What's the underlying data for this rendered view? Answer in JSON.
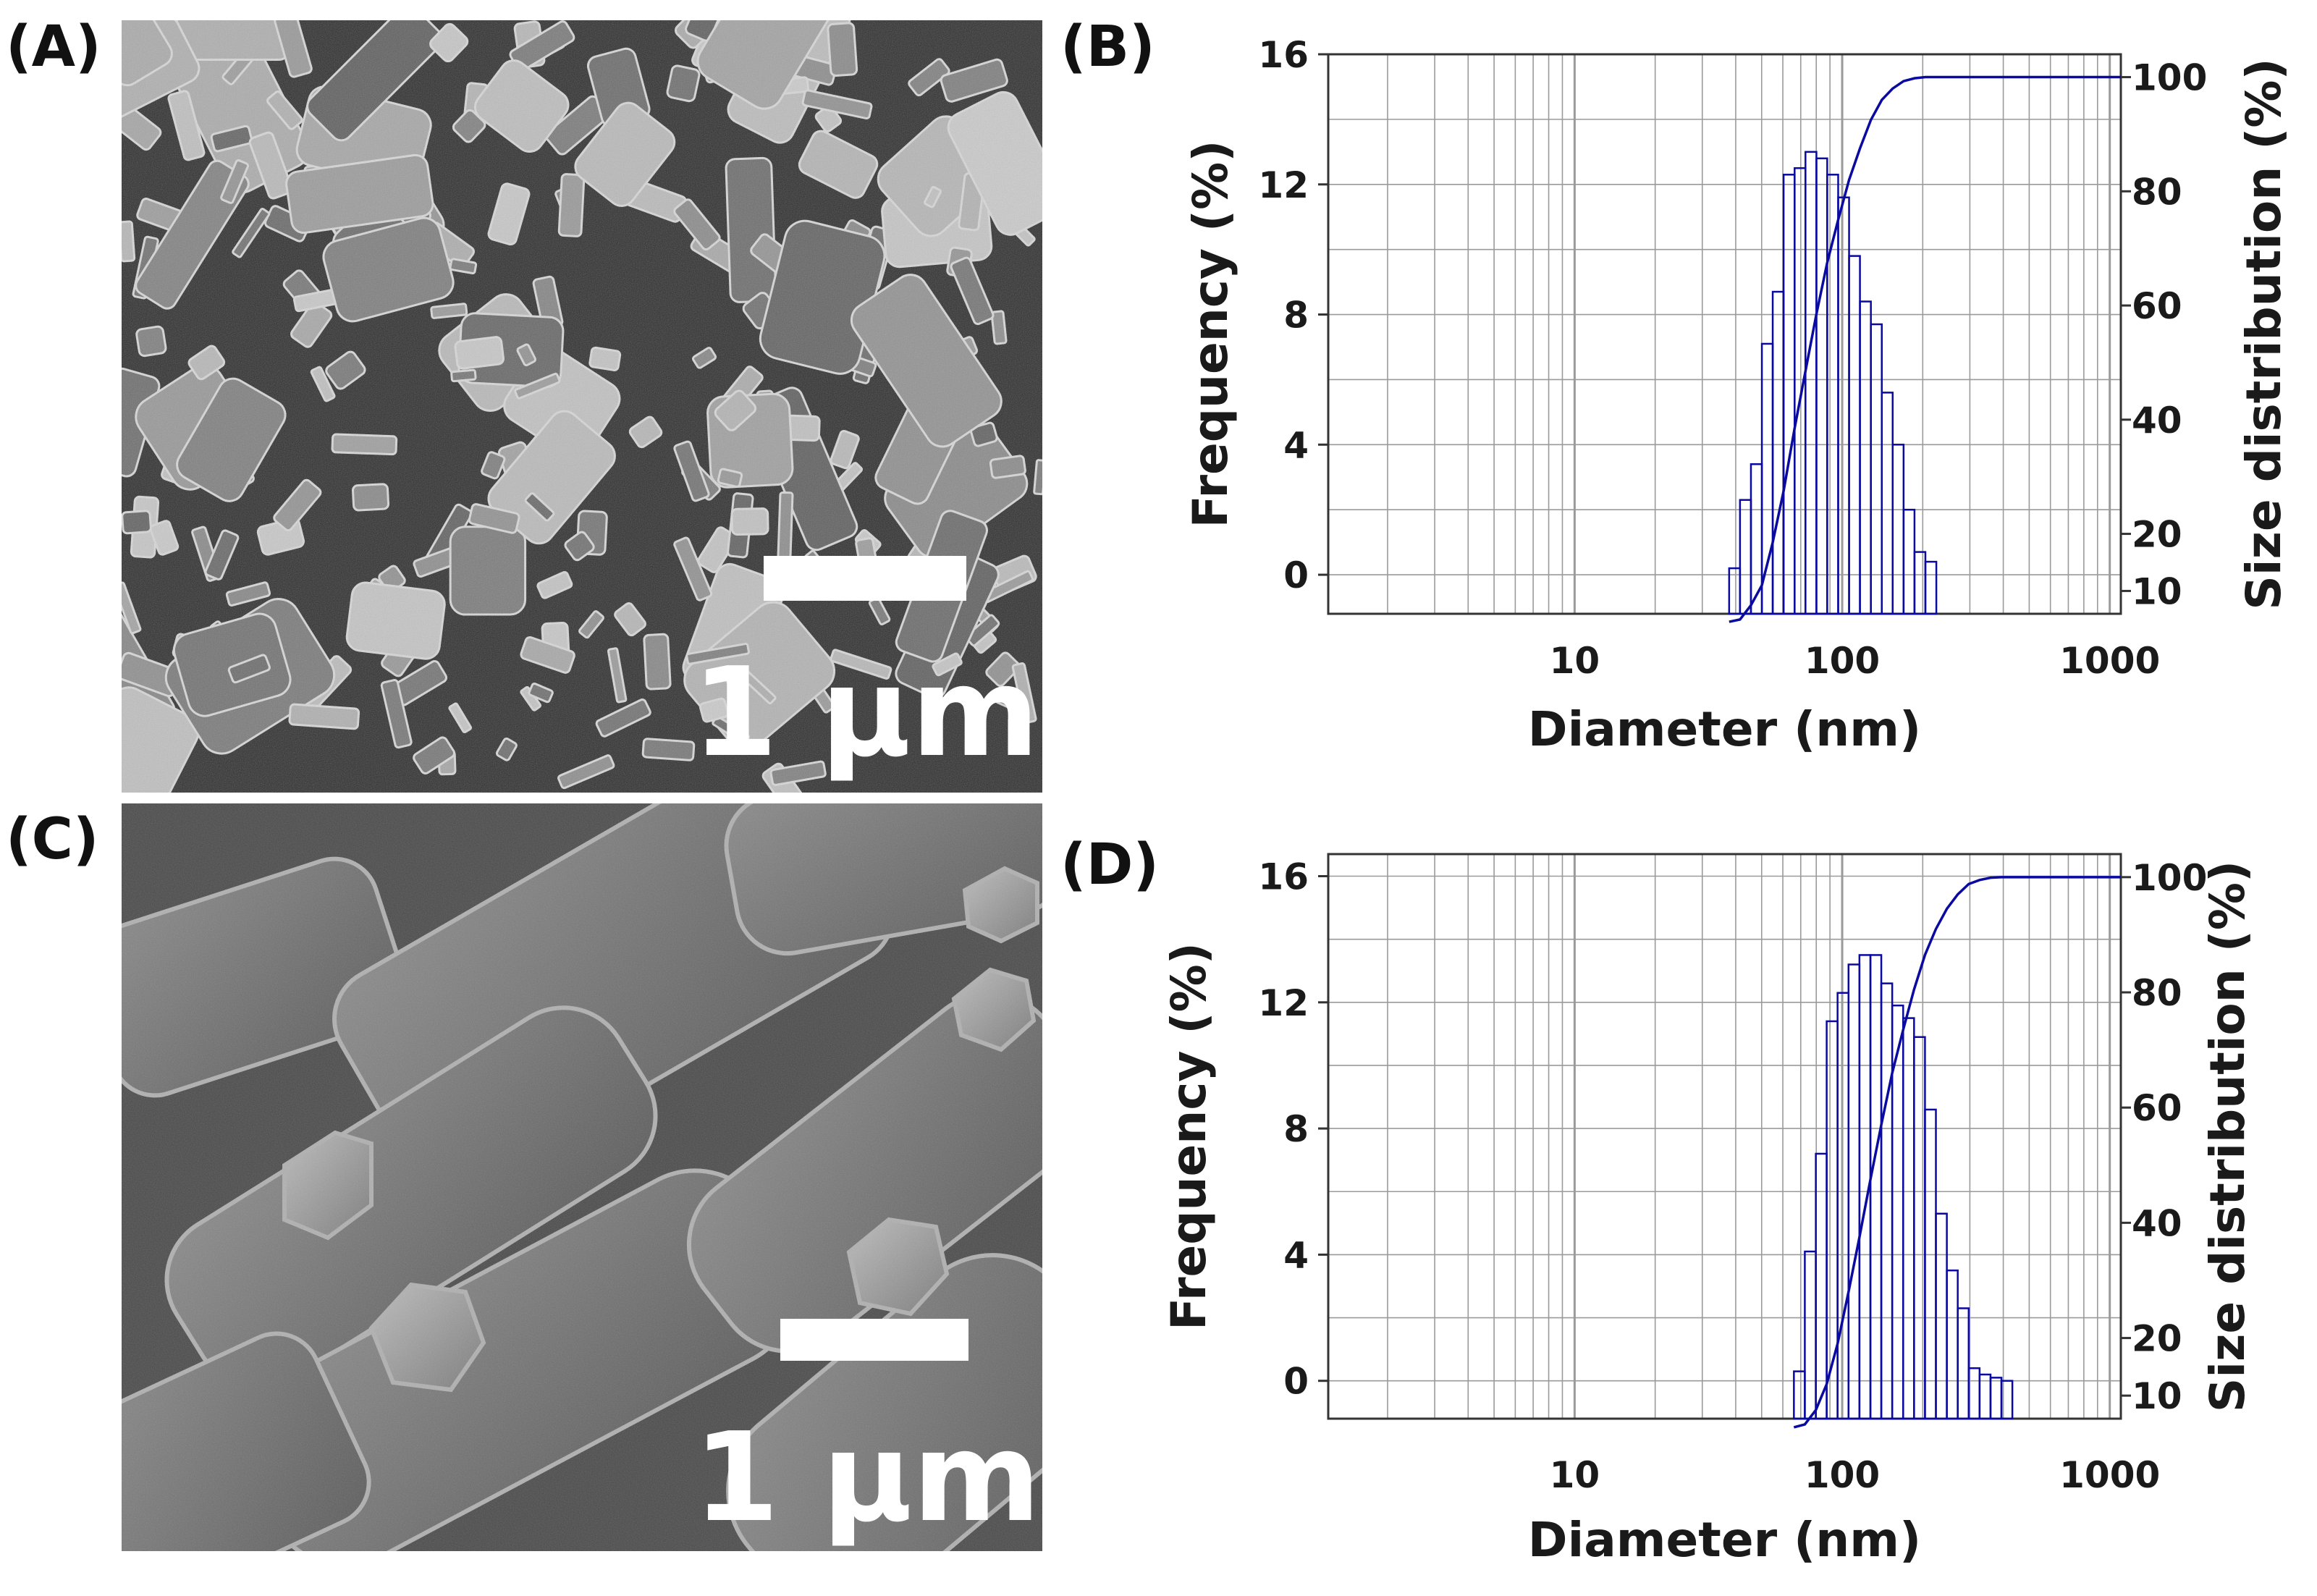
{
  "panels": {
    "A": {
      "label": "(A)",
      "scale_bar": "1 µm"
    },
    "B": {
      "label": "(B)"
    },
    "C": {
      "label": "(C)",
      "scale_bar": "1 µm"
    },
    "D": {
      "label": "(D)"
    }
  },
  "colors": {
    "series": "#0a0aa0",
    "grid": "#9a9a9a",
    "axis": "#333333"
  },
  "chart_data": [
    {
      "type": "bar",
      "panel": "B",
      "xlabel": "Diameter (nm)",
      "ylabel": "Frequency (%)",
      "y2label": "Size distribution (%)",
      "x_scale": "log",
      "xlim": [
        1.2,
        1100
      ],
      "x_ticks": [
        10,
        100,
        1000
      ],
      "x_tick_labels": [
        "10",
        "100",
        "1000"
      ],
      "ylim": [
        -1.2,
        16
      ],
      "y_ticks": [
        0,
        4,
        8,
        12,
        16
      ],
      "y_tick_labels": [
        "0",
        "4",
        "8",
        "12",
        "16"
      ],
      "y2_ticks": [
        10,
        20,
        40,
        60,
        80,
        100
      ],
      "y2_tick_labels": [
        "10",
        "20",
        "40",
        "60",
        "80",
        "100"
      ],
      "grid": true,
      "histogram": {
        "bin_edges": [
          37.8,
          41.5,
          45.6,
          50.1,
          55.0,
          60.4,
          66.4,
          72.9,
          80.1,
          87.9,
          96.6,
          106.1,
          116.5,
          128.0,
          140.6,
          154.4,
          169.6,
          186.3,
          204.6,
          224.8
        ],
        "frequency": [
          0.2,
          2.3,
          3.4,
          7.1,
          8.7,
          12.3,
          12.5,
          13.0,
          12.8,
          12.3,
          11.6,
          9.8,
          8.4,
          7.7,
          5.6,
          4.0,
          2.0,
          0.7,
          0.4,
          0.0
        ]
      },
      "cumulative": {
        "name": "",
        "x": [
          37.8,
          41.5,
          45.6,
          50.1,
          55.0,
          60.4,
          66.4,
          72.9,
          80.1,
          87.9,
          96.6,
          106.1,
          116.5,
          128.0,
          140.6,
          154.4,
          169.6,
          186.3,
          204.6,
          224.8,
          1100
        ],
        "values": [
          4.6,
          5.0,
          7.5,
          11.0,
          18.5,
          27.5,
          38.5,
          48.5,
          58.5,
          67.5,
          75.0,
          82.0,
          87.5,
          92.5,
          96.0,
          98.0,
          99.3,
          99.8,
          100,
          100,
          100
        ]
      }
    },
    {
      "type": "bar",
      "panel": "D",
      "xlabel": "Diameter (nm)",
      "ylabel": "Frequency (%)",
      "y2label": "Size distribution (%)",
      "x_scale": "log",
      "xlim": [
        1.2,
        1100
      ],
      "x_ticks": [
        10,
        100,
        1000
      ],
      "x_tick_labels": [
        "10",
        "100",
        "1000"
      ],
      "ylim": [
        -1.2,
        16.7
      ],
      "y_ticks": [
        0,
        4,
        8,
        12,
        16
      ],
      "y_tick_labels": [
        "0",
        "4",
        "8",
        "12",
        "16"
      ],
      "y2_ticks": [
        10,
        20,
        40,
        60,
        80,
        100
      ],
      "y2_tick_labels": [
        "10",
        "20",
        "40",
        "60",
        "80",
        "100"
      ],
      "grid": true,
      "histogram": {
        "bin_edges": [
          66,
          72.5,
          79.7,
          87.5,
          96.1,
          105.6,
          116.0,
          127.5,
          140.0,
          153.8,
          169.0,
          185.6,
          203.9,
          224.0,
          246.1,
          270.3,
          297.0,
          326.2,
          358.4,
          393.7,
          432.5
        ],
        "frequency": [
          0.3,
          4.1,
          7.2,
          11.4,
          12.3,
          13.2,
          13.5,
          13.5,
          12.6,
          11.9,
          11.5,
          10.9,
          8.6,
          5.3,
          3.5,
          2.3,
          0.4,
          0.2,
          0.1,
          0.0
        ]
      },
      "cumulative": {
        "name": "",
        "x": [
          66,
          72.5,
          79.7,
          87.5,
          96.1,
          105.6,
          116.0,
          127.5,
          140.0,
          153.8,
          169.0,
          185.6,
          203.9,
          224.0,
          246.1,
          270.3,
          297.0,
          326.2,
          358.4,
          393.7,
          432.5,
          1100
        ],
        "values": [
          4.5,
          5.0,
          7.5,
          12.0,
          19.0,
          28.0,
          37.5,
          47.5,
          57.0,
          66.0,
          73.5,
          80.5,
          86.5,
          91.0,
          94.5,
          97.0,
          98.8,
          99.5,
          99.9,
          100,
          100,
          100
        ]
      }
    }
  ]
}
